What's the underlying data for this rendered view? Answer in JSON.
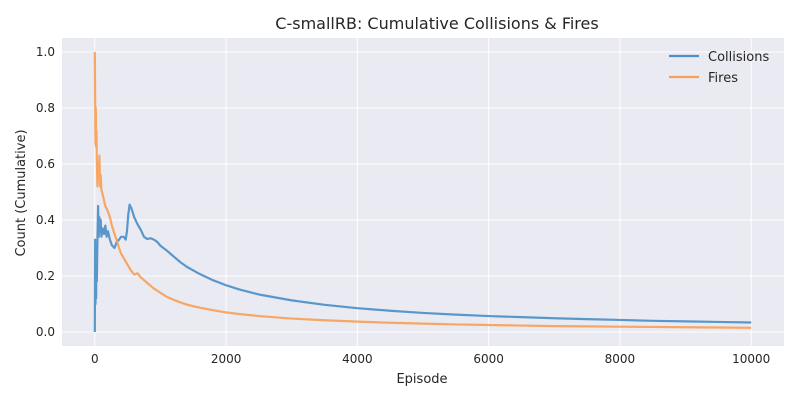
{
  "chart_data": {
    "type": "line",
    "title": "C-smallRB: Cumulative Collisions & Fires",
    "xlabel": "Episode",
    "ylabel": "Count (Cumulative)",
    "xlim": [
      -500,
      10500
    ],
    "ylim": [
      -0.05,
      1.05
    ],
    "xticks": [
      0,
      2000,
      4000,
      6000,
      8000,
      10000
    ],
    "xtick_labels": [
      "0",
      "2000",
      "4000",
      "6000",
      "8000",
      "10000"
    ],
    "yticks": [
      0.0,
      0.2,
      0.4,
      0.6,
      0.8,
      1.0
    ],
    "ytick_labels": [
      "0.0",
      "0.2",
      "0.4",
      "0.6",
      "0.8",
      "1.0"
    ],
    "grid": true,
    "legend_position": "top-right",
    "series": [
      {
        "name": "Collisions",
        "color": "#4C8FC8",
        "points": [
          [
            0,
            0.0
          ],
          [
            5,
            0.33
          ],
          [
            10,
            0.1
          ],
          [
            15,
            0.31
          ],
          [
            20,
            0.12
          ],
          [
            25,
            0.3
          ],
          [
            30,
            0.18
          ],
          [
            40,
            0.33
          ],
          [
            50,
            0.45
          ],
          [
            60,
            0.34
          ],
          [
            70,
            0.41
          ],
          [
            80,
            0.36
          ],
          [
            90,
            0.4
          ],
          [
            100,
            0.34
          ],
          [
            120,
            0.37
          ],
          [
            140,
            0.35
          ],
          [
            160,
            0.38
          ],
          [
            180,
            0.34
          ],
          [
            200,
            0.36
          ],
          [
            230,
            0.33
          ],
          [
            260,
            0.31
          ],
          [
            300,
            0.3
          ],
          [
            330,
            0.32
          ],
          [
            370,
            0.33
          ],
          [
            400,
            0.34
          ],
          [
            440,
            0.34
          ],
          [
            470,
            0.33
          ],
          [
            490,
            0.36
          ],
          [
            510,
            0.42
          ],
          [
            530,
            0.455
          ],
          [
            560,
            0.44
          ],
          [
            600,
            0.41
          ],
          [
            650,
            0.385
          ],
          [
            700,
            0.365
          ],
          [
            750,
            0.34
          ],
          [
            800,
            0.332
          ],
          [
            850,
            0.335
          ],
          [
            900,
            0.33
          ],
          [
            950,
            0.322
          ],
          [
            1000,
            0.308
          ],
          [
            1100,
            0.29
          ],
          [
            1200,
            0.27
          ],
          [
            1300,
            0.25
          ],
          [
            1400,
            0.233
          ],
          [
            1500,
            0.22
          ],
          [
            1600,
            0.207
          ],
          [
            1800,
            0.185
          ],
          [
            2000,
            0.167
          ],
          [
            2200,
            0.152
          ],
          [
            2500,
            0.134
          ],
          [
            3000,
            0.113
          ],
          [
            3500,
            0.097
          ],
          [
            4000,
            0.085
          ],
          [
            4500,
            0.076
          ],
          [
            5000,
            0.068
          ],
          [
            5500,
            0.062
          ],
          [
            6000,
            0.057
          ],
          [
            6500,
            0.053
          ],
          [
            7000,
            0.049
          ],
          [
            7500,
            0.046
          ],
          [
            8000,
            0.043
          ],
          [
            8500,
            0.04
          ],
          [
            9000,
            0.038
          ],
          [
            9500,
            0.036
          ],
          [
            10000,
            0.034
          ]
        ]
      },
      {
        "name": "Fires",
        "color": "#F7A057",
        "points": [
          [
            0,
            1.0
          ],
          [
            5,
            0.83
          ],
          [
            10,
            0.67
          ],
          [
            15,
            0.8
          ],
          [
            20,
            0.66
          ],
          [
            25,
            0.72
          ],
          [
            30,
            0.62
          ],
          [
            40,
            0.52
          ],
          [
            50,
            0.6
          ],
          [
            60,
            0.55
          ],
          [
            70,
            0.63
          ],
          [
            80,
            0.52
          ],
          [
            90,
            0.56
          ],
          [
            100,
            0.51
          ],
          [
            120,
            0.49
          ],
          [
            140,
            0.47
          ],
          [
            160,
            0.45
          ],
          [
            180,
            0.44
          ],
          [
            200,
            0.43
          ],
          [
            230,
            0.41
          ],
          [
            260,
            0.38
          ],
          [
            300,
            0.35
          ],
          [
            330,
            0.33
          ],
          [
            370,
            0.3
          ],
          [
            400,
            0.28
          ],
          [
            450,
            0.26
          ],
          [
            500,
            0.24
          ],
          [
            550,
            0.22
          ],
          [
            600,
            0.205
          ],
          [
            650,
            0.21
          ],
          [
            700,
            0.195
          ],
          [
            800,
            0.175
          ],
          [
            900,
            0.155
          ],
          [
            1000,
            0.14
          ],
          [
            1100,
            0.125
          ],
          [
            1200,
            0.115
          ],
          [
            1300,
            0.106
          ],
          [
            1400,
            0.098
          ],
          [
            1500,
            0.092
          ],
          [
            1600,
            0.087
          ],
          [
            1800,
            0.078
          ],
          [
            2000,
            0.07
          ],
          [
            2200,
            0.064
          ],
          [
            2500,
            0.057
          ],
          [
            3000,
            0.048
          ],
          [
            3500,
            0.042
          ],
          [
            4000,
            0.037
          ],
          [
            4500,
            0.033
          ],
          [
            5000,
            0.03
          ],
          [
            5500,
            0.027
          ],
          [
            6000,
            0.025
          ],
          [
            6500,
            0.023
          ],
          [
            7000,
            0.021
          ],
          [
            7500,
            0.02
          ],
          [
            8000,
            0.019
          ],
          [
            8500,
            0.018
          ],
          [
            9000,
            0.017
          ],
          [
            9500,
            0.016
          ],
          [
            10000,
            0.015
          ]
        ]
      }
    ]
  }
}
